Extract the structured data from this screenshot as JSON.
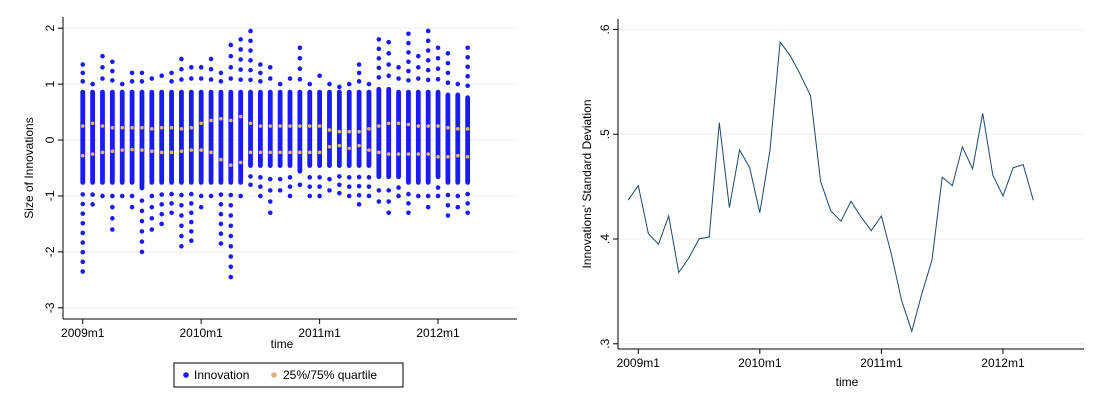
{
  "chart_data": [
    {
      "type": "scatter",
      "xlabel": "time",
      "ylabel": "Size of Innovations",
      "xlim": [
        "2008m11",
        "2012m9"
      ],
      "ylim": [
        -3.2,
        2.2
      ],
      "x_ticks": [
        "2009m1",
        "2010m1",
        "2011m1",
        "2012m1"
      ],
      "y_ticks": [
        "-3",
        "-2",
        "-1",
        "0",
        "1",
        "2"
      ],
      "grid": true,
      "legend_position": "bottom",
      "colors": {
        "innovation": "#1a1aff",
        "quartile": "#e3b27a",
        "grid": "#eaf2f3"
      },
      "x_months": [
        "2009m1",
        "2009m2",
        "2009m3",
        "2009m4",
        "2009m5",
        "2009m6",
        "2009m7",
        "2009m8",
        "2009m9",
        "2009m10",
        "2009m11",
        "2009m12",
        "2010m1",
        "2010m2",
        "2010m3",
        "2010m4",
        "2010m5",
        "2010m6",
        "2010m7",
        "2010m8",
        "2010m9",
        "2010m10",
        "2010m11",
        "2010m12",
        "2011m1",
        "2011m2",
        "2011m3",
        "2011m4",
        "2011m5",
        "2011m6",
        "2011m7",
        "2011m8",
        "2011m9",
        "2011m10",
        "2011m11",
        "2011m12",
        "2012m1",
        "2012m2",
        "2012m3",
        "2012m4"
      ],
      "series": [
        {
          "name": "Innovation",
          "min": [
            -2.35,
            -1.15,
            -1.0,
            -1.6,
            -1.0,
            -1.2,
            -2.0,
            -1.6,
            -1.5,
            -1.3,
            -1.9,
            -1.8,
            -1.2,
            -1.0,
            -1.85,
            -2.45,
            -1.0,
            -0.8,
            -1.0,
            -1.3,
            -0.9,
            -1.0,
            -0.8,
            -1.0,
            -1.0,
            -0.9,
            -0.95,
            -1.0,
            -1.15,
            -1.0,
            -1.1,
            -1.3,
            -1.0,
            -1.3,
            -1.0,
            -1.2,
            -1.0,
            -1.35,
            -1.2,
            -1.3
          ],
          "max": [
            1.35,
            1.0,
            1.5,
            1.4,
            1.0,
            1.2,
            1.2,
            1.1,
            1.15,
            1.2,
            1.45,
            1.3,
            1.3,
            1.45,
            1.2,
            1.7,
            1.8,
            1.95,
            1.35,
            1.3,
            1.0,
            1.1,
            1.65,
            1.0,
            1.15,
            1.0,
            0.95,
            1.0,
            1.35,
            1.0,
            1.8,
            1.75,
            1.3,
            1.9,
            1.5,
            1.95,
            1.65,
            1.55,
            1.0,
            1.65
          ],
          "bulk_low": [
            -0.8,
            -0.8,
            -0.8,
            -0.8,
            -0.8,
            -0.8,
            -0.9,
            -0.8,
            -0.8,
            -0.8,
            -0.8,
            -0.8,
            -0.8,
            -0.8,
            -0.8,
            -0.8,
            -0.8,
            -0.5,
            -0.5,
            -0.5,
            -0.5,
            -0.5,
            -0.6,
            -0.5,
            -0.5,
            -0.5,
            -0.5,
            -0.5,
            -0.5,
            -0.5,
            -0.7,
            -0.7,
            -0.7,
            -0.8,
            -0.8,
            -0.8,
            -0.7,
            -0.8,
            -0.8,
            -0.8
          ],
          "bulk_high": [
            0.9,
            0.9,
            0.9,
            0.9,
            0.9,
            0.9,
            0.9,
            0.9,
            0.9,
            0.9,
            0.9,
            0.9,
            0.9,
            0.9,
            0.9,
            0.9,
            0.9,
            0.9,
            0.9,
            0.9,
            0.9,
            0.9,
            0.9,
            0.9,
            0.9,
            0.9,
            0.9,
            0.9,
            0.9,
            0.9,
            0.95,
            0.95,
            0.9,
            0.9,
            0.9,
            0.9,
            0.9,
            0.85,
            0.85,
            0.8
          ]
        },
        {
          "name": "25%/75% quartile",
          "q25": [
            -0.28,
            -0.25,
            -0.22,
            -0.2,
            -0.18,
            -0.17,
            -0.18,
            -0.2,
            -0.22,
            -0.22,
            -0.2,
            -0.18,
            -0.18,
            -0.22,
            -0.35,
            -0.45,
            -0.4,
            -0.22,
            -0.22,
            -0.22,
            -0.22,
            -0.22,
            -0.22,
            -0.22,
            -0.22,
            -0.12,
            -0.1,
            -0.15,
            -0.1,
            -0.18,
            -0.22,
            -0.25,
            -0.25,
            -0.25,
            -0.25,
            -0.25,
            -0.3,
            -0.3,
            -0.28,
            -0.3
          ],
          "q75": [
            0.25,
            0.3,
            0.25,
            0.22,
            0.22,
            0.22,
            0.22,
            0.2,
            0.22,
            0.22,
            0.2,
            0.22,
            0.3,
            0.35,
            0.38,
            0.35,
            0.42,
            0.3,
            0.25,
            0.25,
            0.25,
            0.25,
            0.25,
            0.25,
            0.25,
            0.18,
            0.15,
            0.15,
            0.15,
            0.2,
            0.25,
            0.3,
            0.3,
            0.28,
            0.25,
            0.25,
            0.25,
            0.22,
            0.2,
            0.2
          ]
        }
      ]
    },
    {
      "type": "line",
      "xlabel": "time",
      "ylabel": "Innovations' Standard Deviation",
      "xlim": [
        "2008m11",
        "2012m9"
      ],
      "ylim": [
        0.295,
        0.61
      ],
      "x_ticks": [
        "2009m1",
        "2010m1",
        "2011m1",
        "2012m1"
      ],
      "y_ticks": [
        ".3",
        ".4",
        ".5",
        ".6"
      ],
      "grid": true,
      "colors": {
        "line": "#1a476f",
        "grid": "#eaf2f3"
      },
      "series": [
        {
          "name": "",
          "x": [
            "2008m12",
            "2009m1",
            "2009m2",
            "2009m3",
            "2009m4",
            "2009m5",
            "2009m6",
            "2009m7",
            "2009m8",
            "2009m9",
            "2009m10",
            "2009m11",
            "2009m12",
            "2010m1",
            "2010m2",
            "2010m3",
            "2010m4",
            "2010m5",
            "2010m6",
            "2010m7",
            "2010m8",
            "2010m9",
            "2010m10",
            "2010m11",
            "2010m12",
            "2011m1",
            "2011m2",
            "2011m3",
            "2011m4",
            "2011m5",
            "2011m6",
            "2011m7",
            "2011m8",
            "2011m9",
            "2011m10",
            "2011m11",
            "2011m12",
            "2012m1",
            "2012m2",
            "2012m3",
            "2012m4"
          ],
          "y": [
            0.437,
            0.451,
            0.405,
            0.395,
            0.422,
            0.368,
            0.382,
            0.4,
            0.402,
            0.511,
            0.43,
            0.485,
            0.468,
            0.425,
            0.485,
            0.588,
            0.575,
            0.557,
            0.537,
            0.455,
            0.427,
            0.417,
            0.436,
            0.421,
            0.408,
            0.422,
            0.385,
            0.341,
            0.312,
            0.348,
            0.38,
            0.459,
            0.451,
            0.488,
            0.467,
            0.52,
            0.461,
            0.441,
            0.468,
            0.471,
            0.437
          ]
        }
      ]
    }
  ]
}
